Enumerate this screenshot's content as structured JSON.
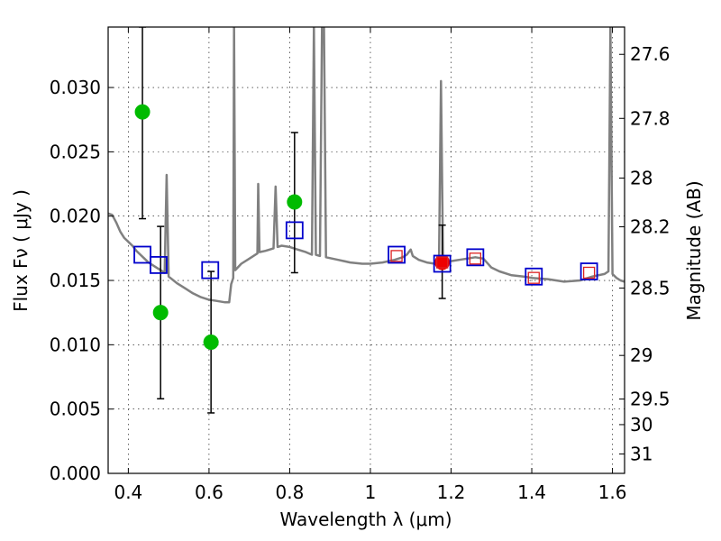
{
  "chart_data": {
    "type": "scatter",
    "xlabel": "Wavelength  λ (μm)",
    "ylabel": "Flux  Fν  ( μJy )",
    "y2label": "Magnitude (AB)",
    "xlim": [
      0.35,
      1.63
    ],
    "ylim": [
      0.0,
      0.0347
    ],
    "grid": true,
    "x_ticks": [
      0.4,
      0.6,
      0.8,
      1.0,
      1.2,
      1.4,
      1.6
    ],
    "x_tick_labels": [
      "0.4",
      "0.6",
      "0.8",
      "1",
      "1.2",
      "1.4",
      "1.6"
    ],
    "y_ticks": [
      0.0,
      0.005,
      0.01,
      0.015,
      0.02,
      0.025,
      0.03
    ],
    "y_tick_labels": [
      "0.000",
      "0.005",
      "0.010",
      "0.015",
      "0.020",
      "0.025",
      "0.030"
    ],
    "y2_ticks": [
      {
        "label": "27.6",
        "flux": 0.03258
      },
      {
        "label": "27.8",
        "flux": 0.0276
      },
      {
        "label": "28",
        "flux": 0.02296
      },
      {
        "label": "28.2",
        "flux": 0.01917
      },
      {
        "label": "28.5",
        "flux": 0.01441
      },
      {
        "label": "29",
        "flux": 0.00917
      },
      {
        "label": "29.5",
        "flux": 0.00578
      },
      {
        "label": "30",
        "flux": 0.00379
      },
      {
        "label": "31",
        "flux": 0.00151
      }
    ],
    "series": [
      {
        "name": "Model SED",
        "style": "line",
        "color": "#808080",
        "points": [
          [
            0.35,
            0.0202
          ],
          [
            0.36,
            0.0201
          ],
          [
            0.37,
            0.0195
          ],
          [
            0.38,
            0.0188
          ],
          [
            0.39,
            0.0183
          ],
          [
            0.4,
            0.018
          ],
          [
            0.41,
            0.0177
          ],
          [
            0.42,
            0.0173
          ],
          [
            0.43,
            0.017
          ],
          [
            0.44,
            0.0167
          ],
          [
            0.45,
            0.0164
          ],
          [
            0.46,
            0.0162
          ],
          [
            0.47,
            0.016
          ],
          [
            0.48,
            0.0158
          ],
          [
            0.49,
            0.0156
          ],
          [
            0.495,
            0.0232
          ],
          [
            0.5,
            0.0153
          ],
          [
            0.52,
            0.0148
          ],
          [
            0.54,
            0.0144
          ],
          [
            0.56,
            0.014
          ],
          [
            0.58,
            0.0137
          ],
          [
            0.6,
            0.0135
          ],
          [
            0.62,
            0.0134
          ],
          [
            0.64,
            0.0133
          ],
          [
            0.65,
            0.0133
          ],
          [
            0.655,
            0.0147
          ],
          [
            0.66,
            0.0152
          ],
          [
            0.662,
            0.0347
          ],
          [
            0.665,
            0.0158
          ],
          [
            0.68,
            0.0163
          ],
          [
            0.7,
            0.0167
          ],
          [
            0.72,
            0.0171
          ],
          [
            0.722,
            0.0225
          ],
          [
            0.725,
            0.0172
          ],
          [
            0.74,
            0.0173
          ],
          [
            0.76,
            0.0175
          ],
          [
            0.765,
            0.0223
          ],
          [
            0.77,
            0.0176
          ],
          [
            0.78,
            0.0177
          ],
          [
            0.8,
            0.0176
          ],
          [
            0.82,
            0.0174
          ],
          [
            0.84,
            0.0172
          ],
          [
            0.855,
            0.017
          ],
          [
            0.86,
            0.0347
          ],
          [
            0.865,
            0.017
          ],
          [
            0.875,
            0.0169
          ],
          [
            0.88,
            0.0347
          ],
          [
            0.885,
            0.0347
          ],
          [
            0.89,
            0.0168
          ],
          [
            0.92,
            0.0166
          ],
          [
            0.95,
            0.0164
          ],
          [
            0.98,
            0.0163
          ],
          [
            1.0,
            0.0163
          ],
          [
            1.03,
            0.0164
          ],
          [
            1.06,
            0.0166
          ],
          [
            1.08,
            0.0168
          ],
          [
            1.09,
            0.017
          ],
          [
            1.1,
            0.0174
          ],
          [
            1.105,
            0.0169
          ],
          [
            1.12,
            0.0166
          ],
          [
            1.14,
            0.0164
          ],
          [
            1.16,
            0.0163
          ],
          [
            1.17,
            0.0165
          ],
          [
            1.175,
            0.0305
          ],
          [
            1.18,
            0.0163
          ],
          [
            1.2,
            0.0165
          ],
          [
            1.22,
            0.0166
          ],
          [
            1.24,
            0.0167
          ],
          [
            1.26,
            0.0168
          ],
          [
            1.28,
            0.0167
          ],
          [
            1.3,
            0.016
          ],
          [
            1.32,
            0.0157
          ],
          [
            1.35,
            0.0154
          ],
          [
            1.38,
            0.0153
          ],
          [
            1.4,
            0.0152
          ],
          [
            1.44,
            0.0151
          ],
          [
            1.48,
            0.0149
          ],
          [
            1.52,
            0.015
          ],
          [
            1.55,
            0.0153
          ],
          [
            1.58,
            0.0155
          ],
          [
            1.59,
            0.0157
          ],
          [
            1.595,
            0.0347
          ],
          [
            1.6,
            0.0155
          ],
          [
            1.61,
            0.0152
          ],
          [
            1.62,
            0.015
          ],
          [
            1.63,
            0.0149
          ]
        ]
      },
      {
        "name": "Observed photometry (green)",
        "style": "marker-circle",
        "color": "#00bb00",
        "points": [
          {
            "x": 0.435,
            "y": 0.0281,
            "yerr_low": 0.0198,
            "yerr_high": 0.0347
          },
          {
            "x": 0.48,
            "y": 0.0125,
            "yerr_low": 0.0058,
            "yerr_high": 0.0192
          },
          {
            "x": 0.605,
            "y": 0.0102,
            "yerr_low": 0.0047,
            "yerr_high": 0.0157
          },
          {
            "x": 0.812,
            "y": 0.0211,
            "yerr_low": 0.0156,
            "yerr_high": 0.0265
          }
        ]
      },
      {
        "name": "Observed photometry (red)",
        "style": "marker-circle",
        "color": "#ee0000",
        "points": [
          {
            "x": 1.178,
            "y": 0.0164,
            "yerr_low": 0.0136,
            "yerr_high": 0.0193
          }
        ]
      },
      {
        "name": "Model fluxes (blue)",
        "style": "marker-square",
        "color": "#0000cc",
        "points": [
          {
            "x": 0.435,
            "y": 0.017
          },
          {
            "x": 0.475,
            "y": 0.0162
          },
          {
            "x": 0.603,
            "y": 0.0158
          },
          {
            "x": 0.812,
            "y": 0.0189
          },
          {
            "x": 1.065,
            "y": 0.017
          },
          {
            "x": 1.178,
            "y": 0.0163
          },
          {
            "x": 1.26,
            "y": 0.0168
          },
          {
            "x": 1.405,
            "y": 0.0153
          },
          {
            "x": 1.542,
            "y": 0.0157
          }
        ]
      },
      {
        "name": "Model fluxes (red)",
        "style": "marker-square-small",
        "color": "#dd2222",
        "points": [
          {
            "x": 1.065,
            "y": 0.0169
          },
          {
            "x": 1.178,
            "y": 0.0164
          },
          {
            "x": 1.26,
            "y": 0.0167
          },
          {
            "x": 1.405,
            "y": 0.0152
          },
          {
            "x": 1.542,
            "y": 0.0156
          }
        ]
      }
    ]
  }
}
